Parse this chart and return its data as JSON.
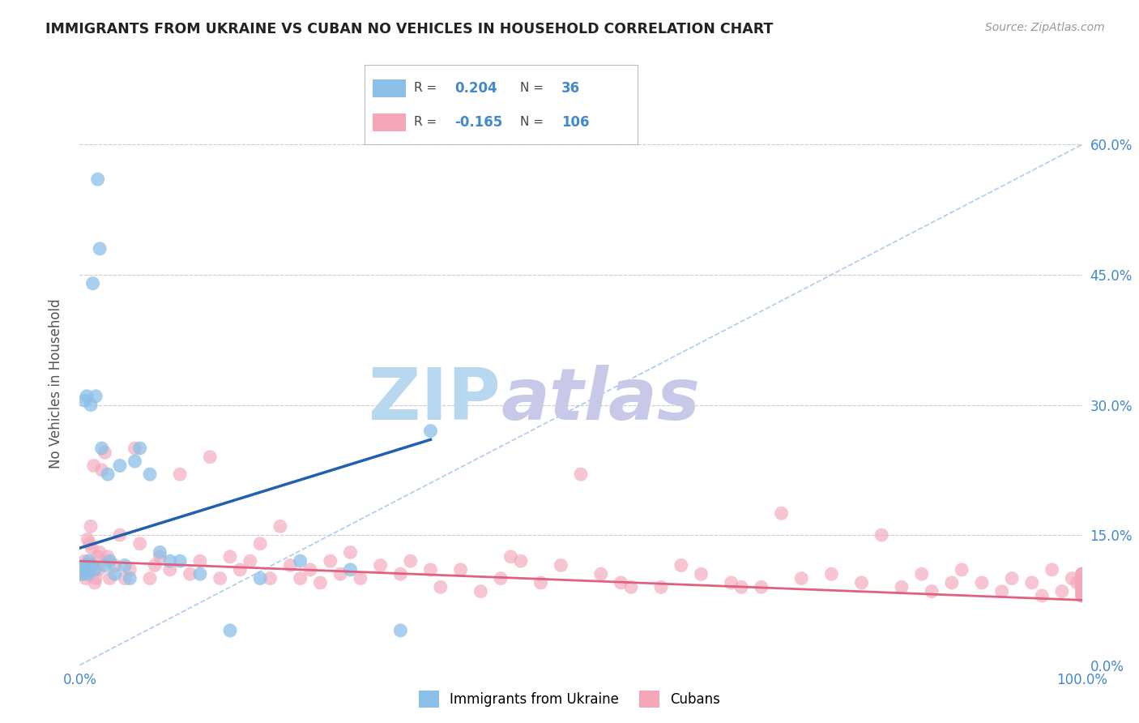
{
  "title": "IMMIGRANTS FROM UKRAINE VS CUBAN NO VEHICLES IN HOUSEHOLD CORRELATION CHART",
  "source_text": "Source: ZipAtlas.com",
  "ylabel": "No Vehicles in Household",
  "xlim": [
    0.0,
    100.0
  ],
  "ylim": [
    0.0,
    65.0
  ],
  "x_tick_positions": [
    0.0,
    100.0
  ],
  "x_tick_labels": [
    "0.0%",
    "100.0%"
  ],
  "y_ticks": [
    0.0,
    15.0,
    30.0,
    45.0,
    60.0
  ],
  "y_tick_labels": [
    "0.0%",
    "15.0%",
    "30.0%",
    "45.0%",
    "60.0%"
  ],
  "legend_label1": "Immigrants from Ukraine",
  "legend_label2": "Cubans",
  "r1": 0.204,
  "n1": 36,
  "r2": -0.165,
  "n2": 106,
  "color_ukraine": "#8bbfe8",
  "color_cuban": "#f4a7b9",
  "color_ukraine_line": "#2060b0",
  "color_cuban_line": "#e06080",
  "watermark_zip": "ZIP",
  "watermark_atlas": "atlas",
  "watermark_color_zip": "#b8d8f0",
  "watermark_color_atlas": "#c8c8e8",
  "background_color": "#ffffff",
  "grid_color": "#cccccc",
  "title_color": "#222222",
  "axis_label_color": "#555555",
  "tick_color": "#4488cc",
  "ukraine_points_x": [
    0.2,
    0.4,
    0.5,
    0.6,
    0.7,
    0.8,
    0.9,
    1.0,
    1.1,
    1.2,
    1.3,
    1.5,
    1.6,
    1.8,
    2.0,
    2.2,
    2.5,
    2.8,
    3.0,
    3.5,
    4.0,
    4.5,
    5.0,
    5.5,
    6.0,
    7.0,
    8.0,
    9.0,
    10.0,
    12.0,
    15.0,
    18.0,
    22.0,
    27.0,
    32.0,
    35.0
  ],
  "ukraine_points_y": [
    10.5,
    11.0,
    30.5,
    11.5,
    31.0,
    10.5,
    12.0,
    11.0,
    30.0,
    11.5,
    44.0,
    11.0,
    31.0,
    56.0,
    48.0,
    25.0,
    11.5,
    22.0,
    12.0,
    10.5,
    23.0,
    11.5,
    10.0,
    23.5,
    25.0,
    22.0,
    13.0,
    12.0,
    12.0,
    10.5,
    4.0,
    10.0,
    12.0,
    11.0,
    4.0,
    27.0
  ],
  "cuban_points_x": [
    0.3,
    0.5,
    0.6,
    0.7,
    0.8,
    0.9,
    1.0,
    1.1,
    1.2,
    1.3,
    1.4,
    1.5,
    1.6,
    1.8,
    1.9,
    2.0,
    2.2,
    2.5,
    2.8,
    3.0,
    3.5,
    4.0,
    4.5,
    5.0,
    5.5,
    6.0,
    7.0,
    7.5,
    8.0,
    9.0,
    10.0,
    11.0,
    12.0,
    13.0,
    14.0,
    15.0,
    16.0,
    17.0,
    18.0,
    19.0,
    20.0,
    21.0,
    22.0,
    23.0,
    24.0,
    25.0,
    26.0,
    27.0,
    28.0,
    30.0,
    32.0,
    33.0,
    35.0,
    36.0,
    38.0,
    40.0,
    42.0,
    43.0,
    44.0,
    46.0,
    48.0,
    50.0,
    52.0,
    54.0,
    55.0,
    58.0,
    60.0,
    62.0,
    65.0,
    66.0,
    68.0,
    70.0,
    72.0,
    75.0,
    78.0,
    80.0,
    82.0,
    84.0,
    85.0,
    87.0,
    88.0,
    90.0,
    92.0,
    93.0,
    95.0,
    96.0,
    97.0,
    98.0,
    99.0,
    99.5,
    100.0,
    100.0,
    100.0,
    100.0,
    100.0,
    100.0,
    100.0,
    100.0,
    100.0,
    100.0,
    100.0,
    100.0,
    100.0,
    100.0,
    100.0,
    100.0
  ],
  "cuban_points_y": [
    10.5,
    12.0,
    10.0,
    11.5,
    14.5,
    11.0,
    14.0,
    16.0,
    13.5,
    11.5,
    23.0,
    9.5,
    10.0,
    12.5,
    11.0,
    13.0,
    22.5,
    24.5,
    12.5,
    10.0,
    11.5,
    15.0,
    10.0,
    11.0,
    25.0,
    14.0,
    10.0,
    11.5,
    12.5,
    11.0,
    22.0,
    10.5,
    12.0,
    24.0,
    10.0,
    12.5,
    11.0,
    12.0,
    14.0,
    10.0,
    16.0,
    11.5,
    10.0,
    11.0,
    9.5,
    12.0,
    10.5,
    13.0,
    10.0,
    11.5,
    10.5,
    12.0,
    11.0,
    9.0,
    11.0,
    8.5,
    10.0,
    12.5,
    12.0,
    9.5,
    11.5,
    22.0,
    10.5,
    9.5,
    9.0,
    9.0,
    11.5,
    10.5,
    9.5,
    9.0,
    9.0,
    17.5,
    10.0,
    10.5,
    9.5,
    15.0,
    9.0,
    10.5,
    8.5,
    9.5,
    11.0,
    9.5,
    8.5,
    10.0,
    9.5,
    8.0,
    11.0,
    8.5,
    10.0,
    9.5,
    10.5,
    9.5,
    9.0,
    8.0,
    10.5,
    8.0,
    9.0,
    8.5,
    10.5,
    9.5,
    8.0,
    9.5,
    8.5,
    9.0,
    10.0,
    8.5
  ],
  "diag_line_x": [
    0.0,
    100.0
  ],
  "diag_line_y": [
    0.0,
    60.0
  ],
  "ukraine_line_x": [
    0.0,
    35.0
  ],
  "ukraine_line_y": [
    13.5,
    26.0
  ],
  "cuban_line_x": [
    0.0,
    100.0
  ],
  "cuban_line_y": [
    12.0,
    7.5
  ]
}
